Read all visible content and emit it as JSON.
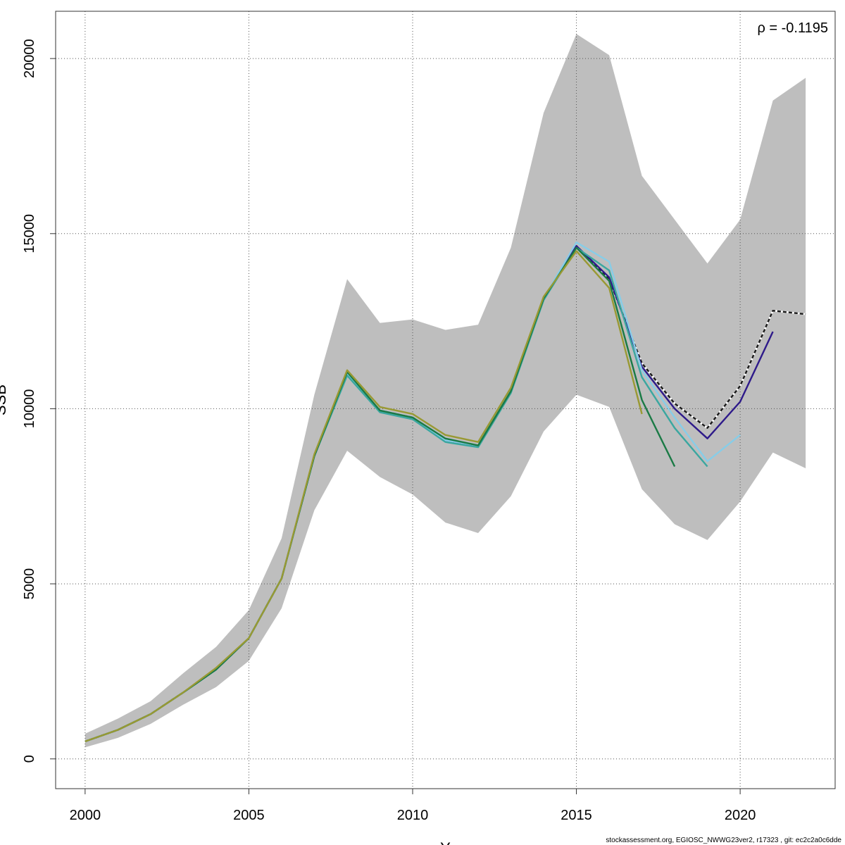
{
  "chart_data": {
    "type": "line",
    "title": "",
    "xlabel": "Y",
    "ylabel": "SSB",
    "xlim": [
      1999.1,
      2022.9
    ],
    "ylim": [
      -850,
      21350
    ],
    "x_ticks": [
      2000,
      2005,
      2010,
      2015,
      2020
    ],
    "y_ticks": [
      0,
      5000,
      10000,
      15000,
      20000
    ],
    "grid": true,
    "annotation": "ρ = -0.1195",
    "confidence_band": {
      "years": [
        2000,
        2001,
        2002,
        2003,
        2004,
        2005,
        2006,
        2007,
        2008,
        2009,
        2010,
        2011,
        2012,
        2013,
        2014,
        2015,
        2016,
        2017,
        2018,
        2019,
        2020,
        2021,
        2022
      ],
      "lower": [
        330,
        600,
        1000,
        1550,
        2050,
        2800,
        4300,
        7100,
        8800,
        8050,
        7550,
        6750,
        6450,
        7500,
        9350,
        10400,
        10050,
        7700,
        6700,
        6250,
        7350,
        8750,
        8300
      ],
      "upper": [
        720,
        1150,
        1650,
        2450,
        3200,
        4250,
        6300,
        10400,
        13700,
        12450,
        12550,
        12250,
        12400,
        14600,
        18450,
        20700,
        20100,
        16650,
        15400,
        14150,
        15400,
        18800,
        19450
      ],
      "color": "#bebebe"
    },
    "series": [
      {
        "color": "#1a1a1a",
        "dashed": true,
        "x": [
          2000,
          2001,
          2002,
          2003,
          2004,
          2005,
          2006,
          2007,
          2008,
          2009,
          2010,
          2011,
          2012,
          2013,
          2014,
          2015,
          2016,
          2017,
          2018,
          2019,
          2020,
          2021,
          2022
        ],
        "values": [
          500,
          830,
          1280,
          1900,
          2550,
          3450,
          5150,
          8650,
          11000,
          9950,
          9750,
          9100,
          8950,
          10500,
          13150,
          14650,
          13700,
          11300,
          10150,
          9450,
          10650,
          12800,
          12700
        ]
      },
      {
        "color": "#2e1a8a",
        "x": [
          2000,
          2001,
          2002,
          2003,
          2004,
          2005,
          2006,
          2007,
          2008,
          2009,
          2010,
          2011,
          2012,
          2013,
          2014,
          2015,
          2016,
          2017,
          2018,
          2019,
          2020,
          2021
        ],
        "values": [
          500,
          830,
          1280,
          1900,
          2550,
          3450,
          5150,
          8650,
          11000,
          9950,
          9750,
          9100,
          8950,
          10500,
          13150,
          14650,
          13750,
          11200,
          10000,
          9150,
          10200,
          12200
        ]
      },
      {
        "color": "#87cde8",
        "x": [
          2000,
          2001,
          2002,
          2003,
          2004,
          2005,
          2006,
          2007,
          2008,
          2009,
          2010,
          2011,
          2012,
          2013,
          2014,
          2015,
          2016,
          2017,
          2018,
          2019,
          2020
        ],
        "values": [
          500,
          830,
          1280,
          1900,
          2550,
          3450,
          5150,
          8650,
          11000,
          9950,
          9750,
          9100,
          8950,
          10500,
          13150,
          14750,
          14200,
          11100,
          9750,
          8500,
          9250
        ]
      },
      {
        "color": "#3aa7a0",
        "x": [
          2000,
          2001,
          2002,
          2003,
          2004,
          2005,
          2006,
          2007,
          2008,
          2009,
          2010,
          2011,
          2012,
          2013,
          2014,
          2015,
          2016,
          2017,
          2018,
          2019
        ],
        "values": [
          500,
          830,
          1280,
          1900,
          2550,
          3450,
          5150,
          8650,
          10950,
          9900,
          9700,
          9050,
          8900,
          10450,
          13100,
          14600,
          13950,
          10900,
          9450,
          8350
        ]
      },
      {
        "color": "#1a7a45",
        "x": [
          2000,
          2001,
          2002,
          2003,
          2004,
          2005,
          2006,
          2007,
          2008,
          2009,
          2010,
          2011,
          2012,
          2013,
          2014,
          2015,
          2016,
          2017,
          2018
        ],
        "values": [
          500,
          830,
          1280,
          1900,
          2550,
          3450,
          5150,
          8650,
          11050,
          9950,
          9750,
          9150,
          8950,
          10500,
          13150,
          14600,
          13650,
          10250,
          8350
        ]
      },
      {
        "color": "#999933",
        "x": [
          2000,
          2001,
          2002,
          2003,
          2004,
          2005,
          2006,
          2007,
          2008,
          2009,
          2010,
          2011,
          2012,
          2013,
          2014,
          2015,
          2016,
          2017
        ],
        "values": [
          500,
          830,
          1280,
          1900,
          2600,
          3450,
          5150,
          8700,
          11100,
          10050,
          9850,
          9250,
          9050,
          10600,
          13200,
          14500,
          13450,
          9850
        ]
      }
    ]
  },
  "footer_text": "stockassessment.org, EGIOSC_NWWG23ver2, r17323 , git: ec2c2a0c6dde",
  "colors": {
    "band": "#bebebe",
    "grid": "#555555",
    "frame": "#333333"
  }
}
